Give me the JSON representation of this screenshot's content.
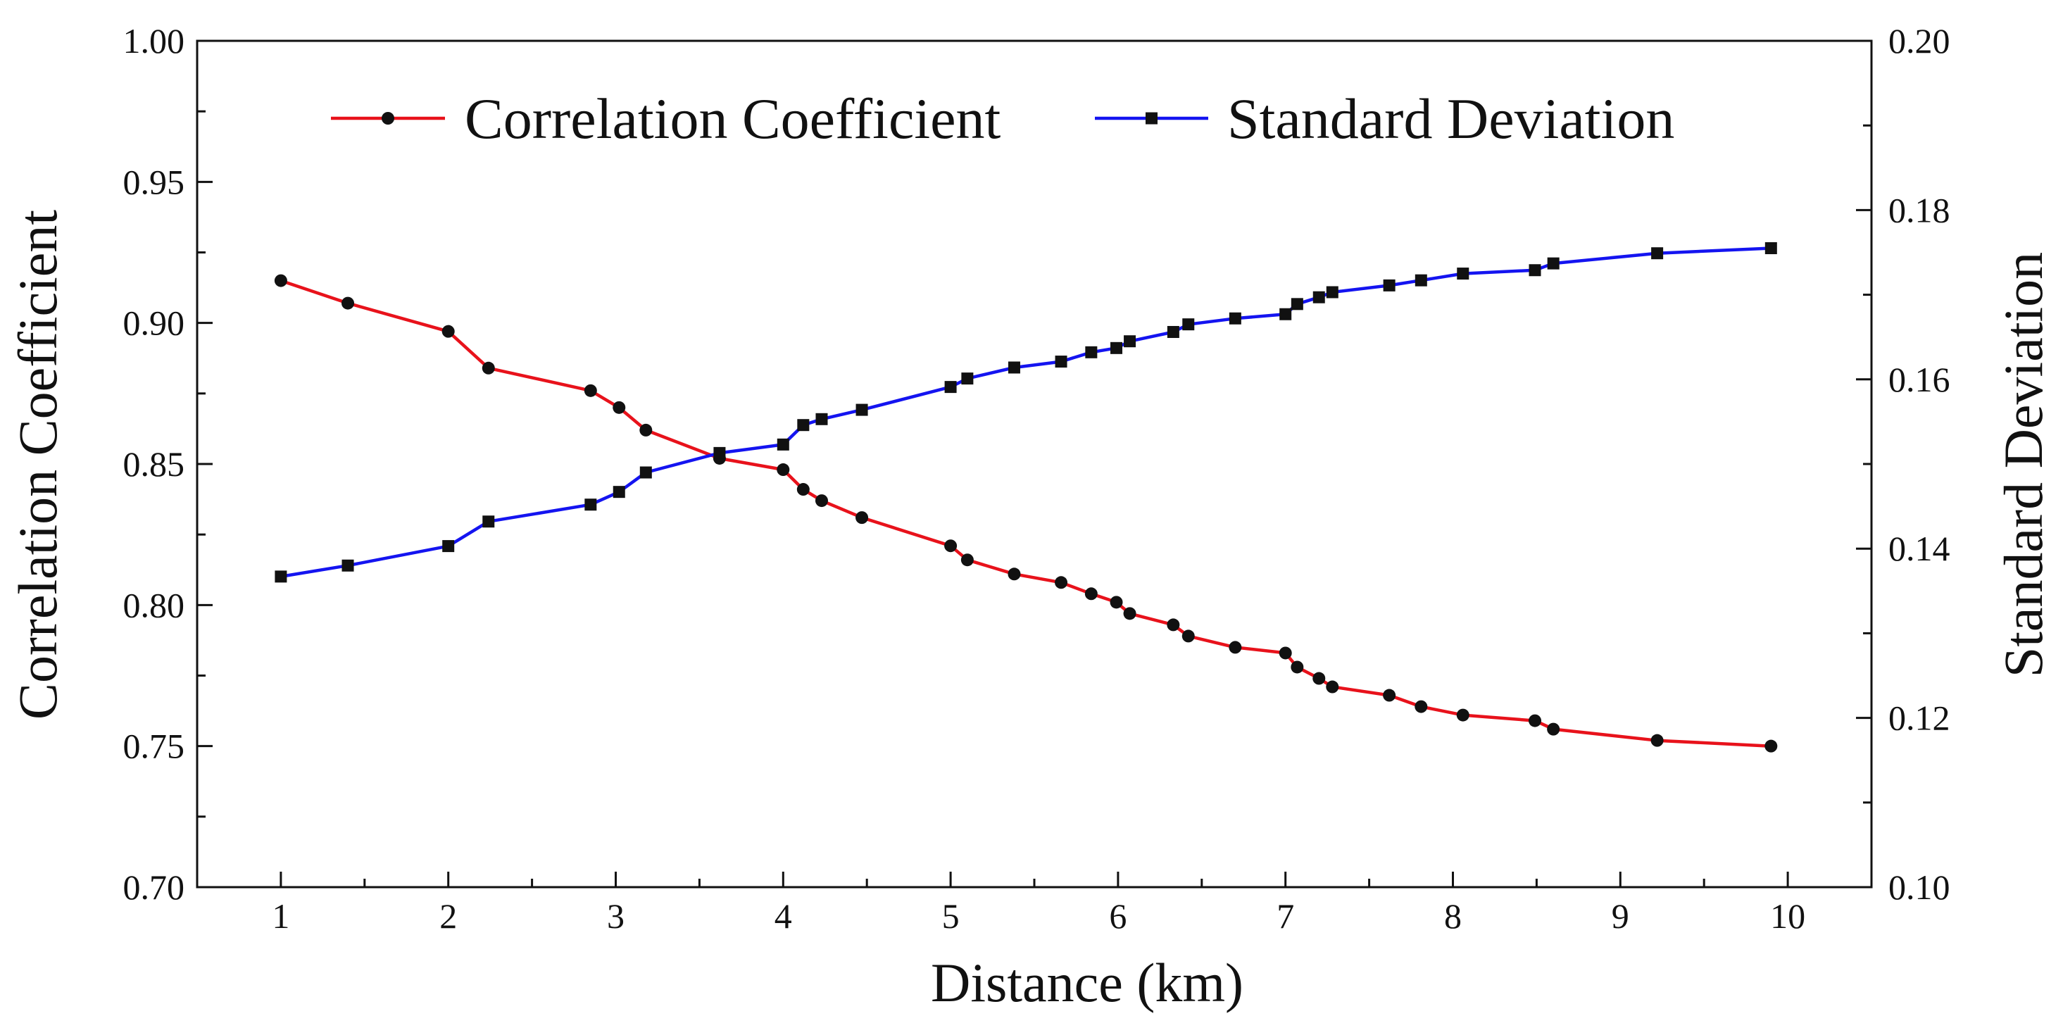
{
  "colors": {
    "correlation": "#e8121b",
    "std": "#1414f0",
    "marker": "#111111",
    "axis": "#111111",
    "background": "#ffffff"
  },
  "chart_data": {
    "type": "line",
    "title": "",
    "xlabel": "Distance (km)",
    "ylabel": "Correlation Coefficient",
    "y2label": "Standard Deviation",
    "xlim": [
      0.5,
      10.5
    ],
    "ylim": [
      0.7,
      1.0
    ],
    "y2lim": [
      0.1,
      0.2
    ],
    "x_ticks": [
      1,
      2,
      3,
      4,
      5,
      6,
      7,
      8,
      9,
      10
    ],
    "y_ticks": [
      0.7,
      0.75,
      0.8,
      0.85,
      0.9,
      0.95,
      1.0
    ],
    "y_tick_labels": [
      "0.70",
      "0.75",
      "0.80",
      "0.85",
      "0.90",
      "0.95",
      "1.00"
    ],
    "y2_ticks": [
      0.1,
      0.12,
      0.14,
      0.16,
      0.18,
      0.2
    ],
    "y2_tick_labels": [
      "0.10",
      "0.12",
      "0.14",
      "0.16",
      "0.18",
      "0.20"
    ],
    "grid": false,
    "legend_position": "top",
    "series": [
      {
        "name": "Correlation Coefficient",
        "axis": "left",
        "marker": "circle",
        "color": "#e8121b",
        "x": [
          1.0,
          1.4,
          2.0,
          2.24,
          2.85,
          3.02,
          3.18,
          3.62,
          4.0,
          4.12,
          4.23,
          4.47,
          5.0,
          5.1,
          5.38,
          5.66,
          5.84,
          5.99,
          6.07,
          6.33,
          6.42,
          6.7,
          7.0,
          7.07,
          7.2,
          7.28,
          7.62,
          7.81,
          8.06,
          8.49,
          8.6,
          9.22,
          9.9
        ],
        "y": [
          0.915,
          0.907,
          0.897,
          0.884,
          0.876,
          0.87,
          0.862,
          0.852,
          0.848,
          0.841,
          0.837,
          0.831,
          0.821,
          0.816,
          0.811,
          0.808,
          0.804,
          0.801,
          0.797,
          0.793,
          0.789,
          0.785,
          0.783,
          0.778,
          0.774,
          0.771,
          0.768,
          0.764,
          0.761,
          0.759,
          0.756,
          0.752,
          0.75
        ]
      },
      {
        "name": "Standard Deviation",
        "axis": "right",
        "marker": "square",
        "color": "#1414f0",
        "x": [
          1.0,
          1.4,
          2.0,
          2.24,
          2.85,
          3.02,
          3.18,
          3.62,
          4.0,
          4.12,
          4.23,
          4.47,
          5.0,
          5.1,
          5.38,
          5.66,
          5.84,
          5.99,
          6.07,
          6.33,
          6.42,
          6.7,
          7.0,
          7.07,
          7.2,
          7.28,
          7.62,
          7.81,
          8.06,
          8.49,
          8.6,
          9.22,
          9.9
        ],
        "y": [
          0.1367,
          0.138,
          0.1403,
          0.1432,
          0.1452,
          0.1467,
          0.149,
          0.1513,
          0.1523,
          0.1546,
          0.1553,
          0.1564,
          0.1591,
          0.1601,
          0.1614,
          0.1621,
          0.1632,
          0.1637,
          0.1645,
          0.1656,
          0.1665,
          0.1672,
          0.1677,
          0.1689,
          0.1697,
          0.1703,
          0.1711,
          0.1717,
          0.1725,
          0.1729,
          0.1737,
          0.1749,
          0.1755
        ]
      }
    ]
  }
}
